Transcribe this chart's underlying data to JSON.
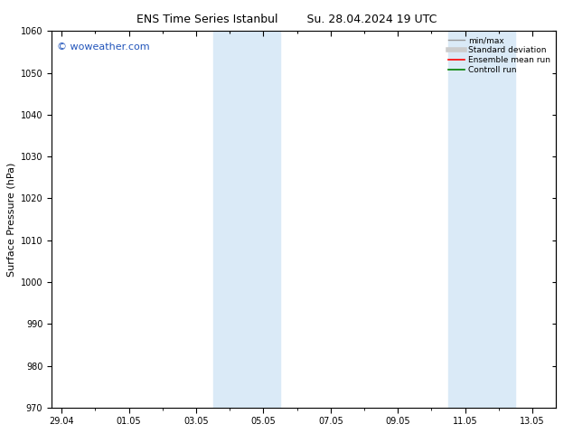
{
  "title_left": "ENS Time Series Istanbul",
  "title_right": "Su. 28.04.2024 19 UTC",
  "ylabel": "Surface Pressure (hPa)",
  "ylim": [
    970,
    1060
  ],
  "yticks": [
    970,
    980,
    990,
    1000,
    1010,
    1020,
    1030,
    1040,
    1050,
    1060
  ],
  "date_start": "2024-04-29",
  "date_end": "2024-05-14",
  "xtick_labels": [
    "29.04",
    "01.05",
    "03.05",
    "05.05",
    "07.05",
    "09.05",
    "11.05",
    "13.05"
  ],
  "xtick_days": [
    0,
    2,
    4,
    6,
    8,
    10,
    12,
    14
  ],
  "minor_xtick_days": [
    1,
    3,
    5,
    7,
    9,
    11,
    13
  ],
  "shaded_bands": [
    {
      "day_start": 4.5,
      "day_end": 6.5
    },
    {
      "day_start": 11.5,
      "day_end": 13.5
    }
  ],
  "shaded_color": "#daeaf7",
  "background_color": "#ffffff",
  "watermark": "© woweather.com",
  "watermark_color": "#2255bb",
  "watermark_fontsize": 8,
  "title_fontsize": 9,
  "legend_items": [
    {
      "label": "min/max",
      "color": "#999999",
      "lw": 1.0
    },
    {
      "label": "Standard deviation",
      "color": "#cccccc",
      "lw": 4.0
    },
    {
      "label": "Ensemble mean run",
      "color": "#ff0000",
      "lw": 1.2
    },
    {
      "label": "Controll run",
      "color": "#008000",
      "lw": 1.2
    }
  ],
  "tick_fontsize": 7,
  "ylabel_fontsize": 8,
  "xlim_days": [
    -0.3,
    14.7
  ]
}
